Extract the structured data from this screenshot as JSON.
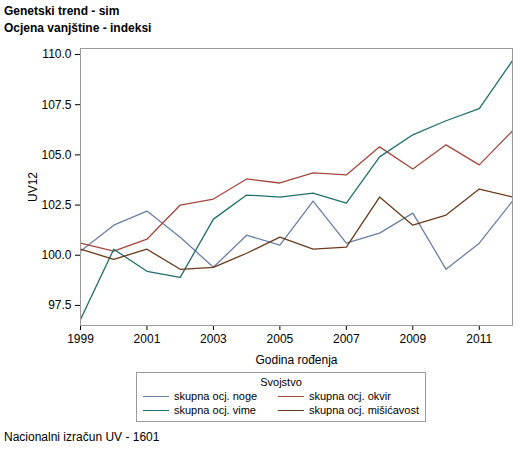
{
  "chart_data": {
    "type": "line",
    "title": "Genetski trend - sim",
    "subtitle": "Ocjena vanjštine - indeksi",
    "caption": "Nacionalni izračun UV - 1601",
    "x_label": "Godina rođenja",
    "y_label": "UV12",
    "legend_title": "Svojstvo",
    "legend": "bottom",
    "grid": false,
    "x": [
      1999,
      2000,
      2001,
      2002,
      2003,
      2004,
      2005,
      2006,
      2007,
      2008,
      2009,
      2010,
      2011,
      2012
    ],
    "xlim": [
      1999,
      2012
    ],
    "xticks": [
      1999,
      2001,
      2003,
      2005,
      2007,
      2009,
      2011
    ],
    "ylim": [
      96.5,
      110.3
    ],
    "yticks": [
      97.5,
      {
        "value": 100,
        "label": "100.0"
      },
      102.5,
      {
        "value": 105,
        "label": "105.0"
      },
      107.5,
      {
        "value": 110,
        "label": "110.0"
      }
    ],
    "series": [
      {
        "name": "skupna ocj. noge",
        "color": "#6b7fa6",
        "values": [
          100.2,
          101.5,
          102.2,
          100.9,
          99.4,
          101.0,
          100.5,
          102.7,
          100.6,
          101.1,
          102.1,
          99.3,
          100.6,
          102.7
        ]
      },
      {
        "name": "skupna ocj. okvir",
        "color": "#a5473c",
        "values": [
          100.6,
          100.2,
          100.8,
          102.5,
          102.8,
          103.8,
          103.6,
          104.1,
          104.0,
          105.4,
          104.3,
          105.5,
          104.5,
          106.2
        ]
      },
      {
        "name": "skupna ocj. vime",
        "color": "#1f6f6c",
        "values": [
          96.8,
          100.3,
          99.2,
          98.9,
          101.8,
          103.0,
          102.9,
          103.1,
          102.6,
          104.9,
          106.0,
          106.7,
          107.3,
          109.7
        ]
      },
      {
        "name": "skupna ocj. mišićavost",
        "color": "#6a3b1c",
        "values": [
          100.3,
          99.8,
          100.3,
          99.3,
          99.4,
          100.1,
          100.9,
          100.3,
          100.4,
          102.9,
          101.5,
          102.0,
          103.3,
          102.9
        ]
      }
    ]
  }
}
